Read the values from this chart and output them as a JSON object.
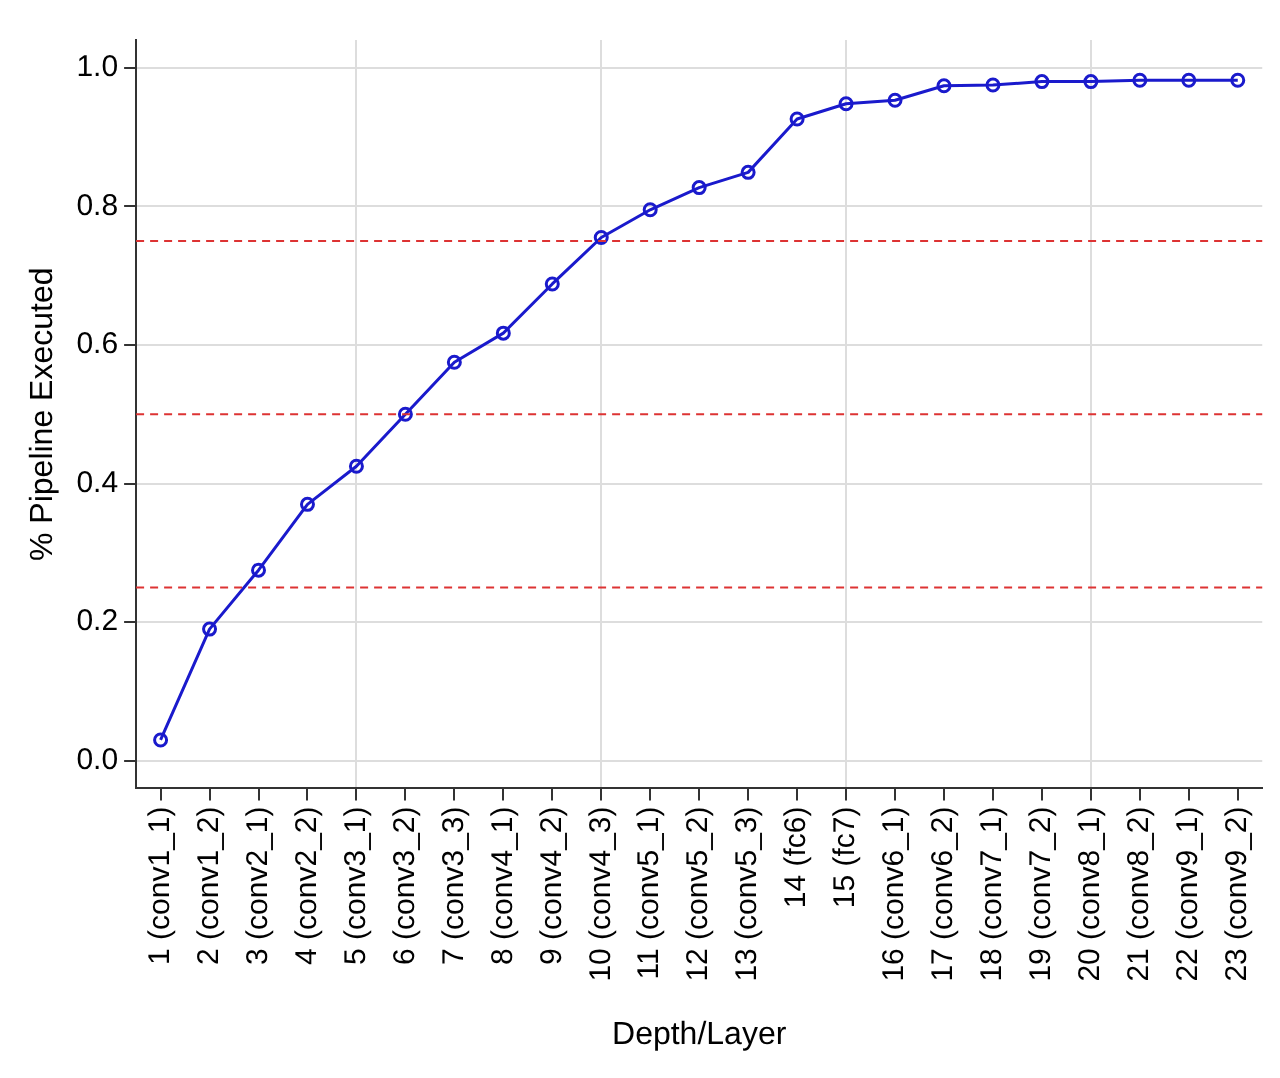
{
  "chart_data": {
    "type": "line",
    "xlabel": "Depth/Layer",
    "ylabel": "% Pipeline Executed",
    "categories": [
      "1 (conv1_1)",
      "2 (conv1_2)",
      "3 (conv2_1)",
      "4 (conv2_2)",
      "5 (conv3_1)",
      "6 (conv3_2)",
      "7 (conv3_3)",
      "8 (conv4_1)",
      "9 (conv4_2)",
      "10 (conv4_3)",
      "11 (conv5_1)",
      "12 (conv5_2)",
      "13 (conv5_3)",
      "14 (fc6)",
      "15 (fc7)",
      "16 (conv6_1)",
      "17 (conv6_2)",
      "18 (conv7_1)",
      "19 (conv7_2)",
      "20 (conv8_1)",
      "21 (conv8_2)",
      "22 (conv9_1)",
      "23 (conv9_2)"
    ],
    "series": [
      {
        "color": "#1a1acc",
        "values": [
          0.03,
          0.19,
          0.275,
          0.37,
          0.425,
          0.5,
          0.575,
          0.617,
          0.688,
          0.755,
          0.795,
          0.827,
          0.849,
          0.926,
          0.948,
          0.953,
          0.974,
          0.975,
          0.98,
          0.98,
          0.982,
          0.982,
          0.982
        ]
      }
    ],
    "ylim": [
      -0.04,
      1.04
    ],
    "yticks": [
      {
        "value": 0,
        "label": "0.0"
      },
      0.2,
      0.4,
      0.6,
      0.8,
      {
        "value": 1,
        "label": "1.0"
      }
    ],
    "ref_lines": [
      {
        "axis": "y",
        "value": 0.25,
        "color": "#dd3333",
        "line_style": "dashed"
      },
      {
        "axis": "y",
        "value": 0.5,
        "color": "#dd3333",
        "line_style": "dashed"
      },
      {
        "axis": "y",
        "value": 0.75,
        "color": "#dd3333",
        "line_style": "dashed"
      }
    ],
    "grid": true,
    "legend": false,
    "marker": "circle",
    "line_style": "solid"
  }
}
